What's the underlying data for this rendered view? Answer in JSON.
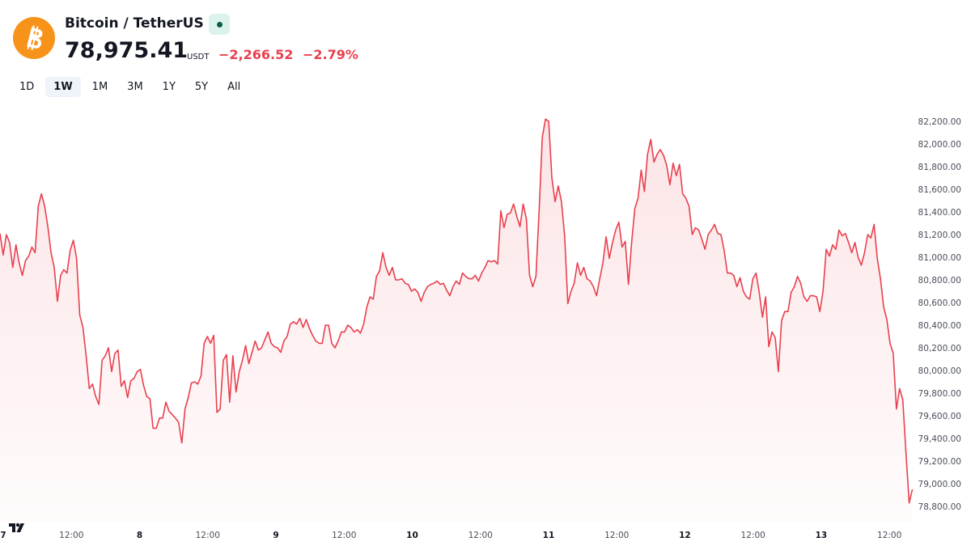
{
  "header": {
    "title": "Bitcoin / TetherUS",
    "price": "78,975.41",
    "currency": "USDT",
    "change": "−2,266.52",
    "change_percent": "−2.79%",
    "ranges": [
      "1D",
      "1W",
      "1M",
      "3M",
      "1Y",
      "5Y",
      "All"
    ],
    "selected_range": "1W"
  },
  "chart_data": {
    "type": "line",
    "color": "#e8404e",
    "grid": false,
    "x": [
      6.976,
      6.9994,
      7.0228,
      7.0462,
      7.0696,
      7.093,
      7.1164,
      7.1398,
      7.1632,
      7.1866,
      7.21,
      7.2334,
      7.2568,
      7.2802,
      7.3036,
      7.327,
      7.3504,
      7.3738,
      7.3972,
      7.4206,
      7.444,
      7.4674,
      7.4908,
      7.5142,
      7.5376,
      7.561,
      7.5844,
      7.6078,
      7.6312,
      7.6546,
      7.678,
      7.7014,
      7.7248,
      7.7482,
      7.7716,
      7.795,
      7.8184,
      7.8418,
      7.8652,
      7.8886,
      7.912,
      7.9354,
      7.9588,
      7.9822,
      8.0056,
      8.029,
      8.0524,
      8.0758,
      8.0992,
      8.1226,
      8.146,
      8.1694,
      8.1928,
      8.2162,
      8.2396,
      8.263,
      8.2864,
      8.3098,
      8.3332,
      8.3566,
      8.38,
      8.4034,
      8.4268,
      8.4502,
      8.4736,
      8.497,
      8.5204,
      8.5438,
      8.5672,
      8.5906,
      8.614,
      8.6374,
      8.6608,
      8.6842,
      8.7076,
      8.731,
      8.7544,
      8.7778,
      8.8012,
      8.8246,
      8.848,
      8.8714,
      8.8948,
      8.9182,
      8.9416,
      8.965,
      8.9884,
      9.0118,
      9.0352,
      9.0586,
      9.082,
      9.1054,
      9.1288,
      9.1522,
      9.1756,
      9.199,
      9.2224,
      9.2458,
      9.2692,
      9.2926,
      9.316,
      9.3394,
      9.3628,
      9.3862,
      9.4096,
      9.433,
      9.4564,
      9.4798,
      9.5032,
      9.5266,
      9.55,
      9.5734,
      9.5968,
      9.6202,
      9.6436,
      9.667,
      9.6904,
      9.7138,
      9.7372,
      9.7606,
      9.784,
      9.8074,
      9.8308,
      9.8542,
      9.8776,
      9.901,
      9.9244,
      9.9478,
      9.9712,
      9.9946,
      10.018,
      10.0414,
      10.0648,
      10.0882,
      10.1116,
      10.135,
      10.1584,
      10.1818,
      10.2052,
      10.2286,
      10.252,
      10.2754,
      10.2988,
      10.3222,
      10.3456,
      10.369,
      10.3924,
      10.4158,
      10.4392,
      10.4626,
      10.486,
      10.5094,
      10.5328,
      10.5562,
      10.5796,
      10.603,
      10.6264,
      10.6498,
      10.6732,
      10.6966,
      10.72,
      10.7434,
      10.7668,
      10.7902,
      10.8136,
      10.837,
      10.8604,
      10.8838,
      10.9072,
      10.9306,
      10.954,
      10.9774,
      11.0008,
      11.0242,
      11.0476,
      11.071,
      11.0944,
      11.1178,
      11.1412,
      11.1646,
      11.188,
      11.2114,
      11.2348,
      11.2582,
      11.2816,
      11.305,
      11.3284,
      11.3518,
      11.3752,
      11.3986,
      11.422,
      11.4454,
      11.4688,
      11.4922,
      11.5156,
      11.539,
      11.5624,
      11.5858,
      11.6092,
      11.6326,
      11.656,
      11.6794,
      11.7028,
      11.7262,
      11.7496,
      11.773,
      11.7964,
      11.8198,
      11.8432,
      11.8666,
      11.89,
      11.9134,
      11.9368,
      11.9602,
      11.9836,
      12.007,
      12.0304,
      12.0538,
      12.0772,
      12.1006,
      12.124,
      12.1474,
      12.1708,
      12.1942,
      12.2176,
      12.241,
      12.2644,
      12.2878,
      12.3112,
      12.3346,
      12.358,
      12.3814,
      12.4048,
      12.4282,
      12.4516,
      12.475,
      12.4984,
      12.5218,
      12.5452,
      12.5686,
      12.592,
      12.6154,
      12.6388,
      12.6622,
      12.6856,
      12.709,
      12.7324,
      12.7558,
      12.7792,
      12.8026,
      12.826,
      12.8494,
      12.8728,
      12.8962,
      12.9196,
      12.943,
      12.9664,
      12.9898,
      13.0132,
      13.0366,
      13.06,
      13.0834,
      13.1068,
      13.1302,
      13.1536,
      13.177,
      13.2004,
      13.2238,
      13.2472,
      13.2706,
      13.294,
      13.3174,
      13.3408,
      13.3642,
      13.3876,
      13.411,
      13.4344,
      13.4578,
      13.4812,
      13.5046,
      13.528,
      13.5514,
      13.5748,
      13.5982,
      13.6216,
      13.645,
      13.6684
    ],
    "values": [
      81210,
      81020,
      81200,
      81130,
      80910,
      81110,
      80950,
      80840,
      80970,
      81010,
      81090,
      81040,
      81450,
      81560,
      81450,
      81270,
      81040,
      80910,
      80610,
      80840,
      80890,
      80860,
      81060,
      81150,
      80990,
      80490,
      80380,
      80130,
      79840,
      79880,
      79770,
      79700,
      80090,
      80130,
      80200,
      79990,
      80150,
      80180,
      79860,
      79910,
      79760,
      79910,
      79930,
      79990,
      80010,
      79870,
      79770,
      79750,
      79490,
      79490,
      79580,
      79580,
      79720,
      79640,
      79610,
      79580,
      79540,
      79360,
      79660,
      79760,
      79890,
      79900,
      79880,
      79950,
      80240,
      80300,
      80240,
      80310,
      79630,
      79660,
      80090,
      80140,
      79720,
      80130,
      79810,
      79990,
      80090,
      80220,
      80060,
      80160,
      80260,
      80180,
      80200,
      80270,
      80340,
      80240,
      80210,
      80200,
      80160,
      80260,
      80300,
      80410,
      80430,
      80410,
      80460,
      80380,
      80450,
      80370,
      80310,
      80260,
      80240,
      80240,
      80400,
      80400,
      80240,
      80200,
      80260,
      80340,
      80340,
      80400,
      80380,
      80340,
      80360,
      80330,
      80410,
      80560,
      80650,
      80630,
      80830,
      80880,
      81040,
      80910,
      80840,
      80910,
      80800,
      80800,
      80810,
      80770,
      80760,
      80700,
      80720,
      80690,
      80610,
      80690,
      80740,
      80760,
      80770,
      80790,
      80760,
      80770,
      80710,
      80660,
      80740,
      80790,
      80760,
      80860,
      80830,
      80810,
      80810,
      80840,
      80790,
      80860,
      80910,
      80970,
      80960,
      80970,
      80940,
      81410,
      81260,
      81380,
      81390,
      81470,
      81360,
      81270,
      81470,
      81340,
      80840,
      80740,
      80830,
      81410,
      82060,
      82220,
      82200,
      81700,
      81490,
      81630,
      81490,
      81190,
      80590,
      80700,
      80770,
      80950,
      80840,
      80910,
      80810,
      80790,
      80740,
      80660,
      80810,
      80950,
      81180,
      80990,
      81130,
      81240,
      81310,
      81090,
      81140,
      80760,
      81130,
      81430,
      81520,
      81770,
      81580,
      81910,
      82040,
      81840,
      81910,
      81950,
      81900,
      81810,
      81640,
      81830,
      81720,
      81820,
      81560,
      81520,
      81450,
      81200,
      81260,
      81240,
      81160,
      81070,
      81200,
      81240,
      81290,
      81210,
      81200,
      81060,
      80860,
      80860,
      80840,
      80740,
      80820,
      80700,
      80650,
      80630,
      80810,
      80860,
      80690,
      80470,
      80650,
      80210,
      80340,
      80290,
      79990,
      80440,
      80520,
      80520,
      80690,
      80740,
      80830,
      80770,
      80650,
      80610,
      80660,
      80660,
      80650,
      80520,
      80700,
      81070,
      81010,
      81110,
      81070,
      81240,
      81190,
      81210,
      81130,
      81040,
      81130,
      81000,
      80930,
      81040,
      81200,
      81170,
      81290,
      80990,
      80810,
      80560,
      80450,
      80240,
      80150,
      79660,
      79840,
      79740,
      79270,
      78830,
      78950
    ],
    "xlim": [
      6.976,
      13.683
    ],
    "xticks": [
      7,
      {
        "value": 7.5,
        "label": "12:00"
      },
      8,
      {
        "value": 8.5,
        "label": "12:00"
      },
      9,
      {
        "value": 9.5,
        "label": "12:00"
      },
      10,
      {
        "value": 10.5,
        "label": "12:00"
      },
      11,
      {
        "value": 11.5,
        "label": "12:00"
      },
      12,
      {
        "value": 12.5,
        "label": "12:00"
      },
      13,
      {
        "value": 13.5,
        "label": "12:00"
      }
    ],
    "ylim": [
      78700,
      82350
    ],
    "yticks": [
      {
        "value": 78800,
        "label": "78,800.00"
      },
      {
        "value": 79000,
        "label": "79,000.00"
      },
      {
        "value": 79200,
        "label": "79,200.00"
      },
      {
        "value": 79400,
        "label": "79,400.00"
      },
      {
        "value": 79600,
        "label": "79,600.00"
      },
      {
        "value": 79800,
        "label": "79,800.00"
      },
      {
        "value": 80000,
        "label": "80,000.00"
      },
      {
        "value": 80200,
        "label": "80,200.00"
      },
      {
        "value": 80400,
        "label": "80,400.00"
      },
      {
        "value": 80600,
        "label": "80,600.00"
      },
      {
        "value": 80800,
        "label": "80,800.00"
      },
      {
        "value": 81000,
        "label": "81,000.00"
      },
      {
        "value": 81200,
        "label": "81,200.00"
      },
      {
        "value": 81400,
        "label": "81,400.00"
      },
      {
        "value": 81600,
        "label": "81,600.00"
      },
      {
        "value": 81800,
        "label": "81,800.00"
      },
      {
        "value": 82000,
        "label": "82,000.00"
      },
      {
        "value": 82200,
        "label": "82,200.00"
      }
    ]
  }
}
